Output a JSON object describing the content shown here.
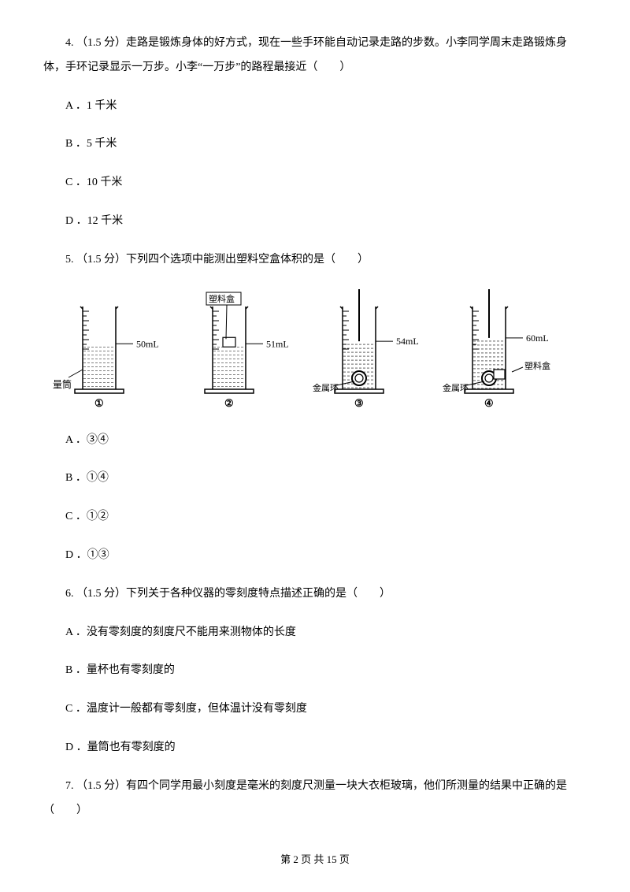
{
  "q4": {
    "stem": "4. （1.5 分）走路是锻炼身体的好方式，现在一些手环能自动记录走路的步数。小李同学周末走路锻炼身体，手环记录显示一万步。小李“一万步”的路程最接近（　　）",
    "opts": {
      "A": "A ．1 千米",
      "B": "B ．5 千米",
      "C": "C ．10 千米",
      "D": "D ．12 千米"
    }
  },
  "q5": {
    "stem": "5. （1.5 分）下列四个选项中能测出塑料空盒体积的是（　　）",
    "opts": {
      "A": "A ．③④",
      "B": "B ．①④",
      "C": "C ．①②",
      "D": "D ．①③"
    },
    "figure": {
      "cylinders": [
        {
          "num": "①",
          "level_label": "50mL",
          "left_label": "量筒",
          "fill": 0.55,
          "has_box_top": false,
          "has_ring": false,
          "has_rod": false,
          "box_label": "",
          "ring_label": ""
        },
        {
          "num": "②",
          "level_label": "51mL",
          "left_label": "",
          "fill": 0.55,
          "has_box_top": true,
          "has_ring": false,
          "has_rod": false,
          "box_label": "塑料盒",
          "ring_label": ""
        },
        {
          "num": "③",
          "level_label": "54mL",
          "left_label": "",
          "fill": 0.58,
          "has_box_top": false,
          "has_ring": true,
          "has_rod": true,
          "box_label": "",
          "ring_label": "金属环"
        },
        {
          "num": "④",
          "level_label": "60mL",
          "left_label": "",
          "fill": 0.62,
          "has_box_top": false,
          "has_ring": true,
          "has_rod": true,
          "box_label": "塑料盒",
          "ring_label": "金属环",
          "has_box_in_ring": true
        }
      ],
      "stroke": "#000000",
      "label_fontsize": 12,
      "num_fontsize": 13
    }
  },
  "q6": {
    "stem": "6. （1.5 分）下列关于各种仪器的零刻度特点描述正确的是（　　）",
    "opts": {
      "A": "A ．没有零刻度的刻度尺不能用来测物体的长度",
      "B": "B ．量杯也有零刻度的",
      "C": "C ．温度计一般都有零刻度，但体温计没有零刻度",
      "D": "D ．量筒也有零刻度的"
    }
  },
  "q7": {
    "stem": "7.  （1.5 分）有四个同学用最小刻度是毫米的刻度尺测量一块大衣柜玻璃，他们所测量的结果中正确的是（　　）"
  },
  "footer": "第 2 页 共 15 页"
}
